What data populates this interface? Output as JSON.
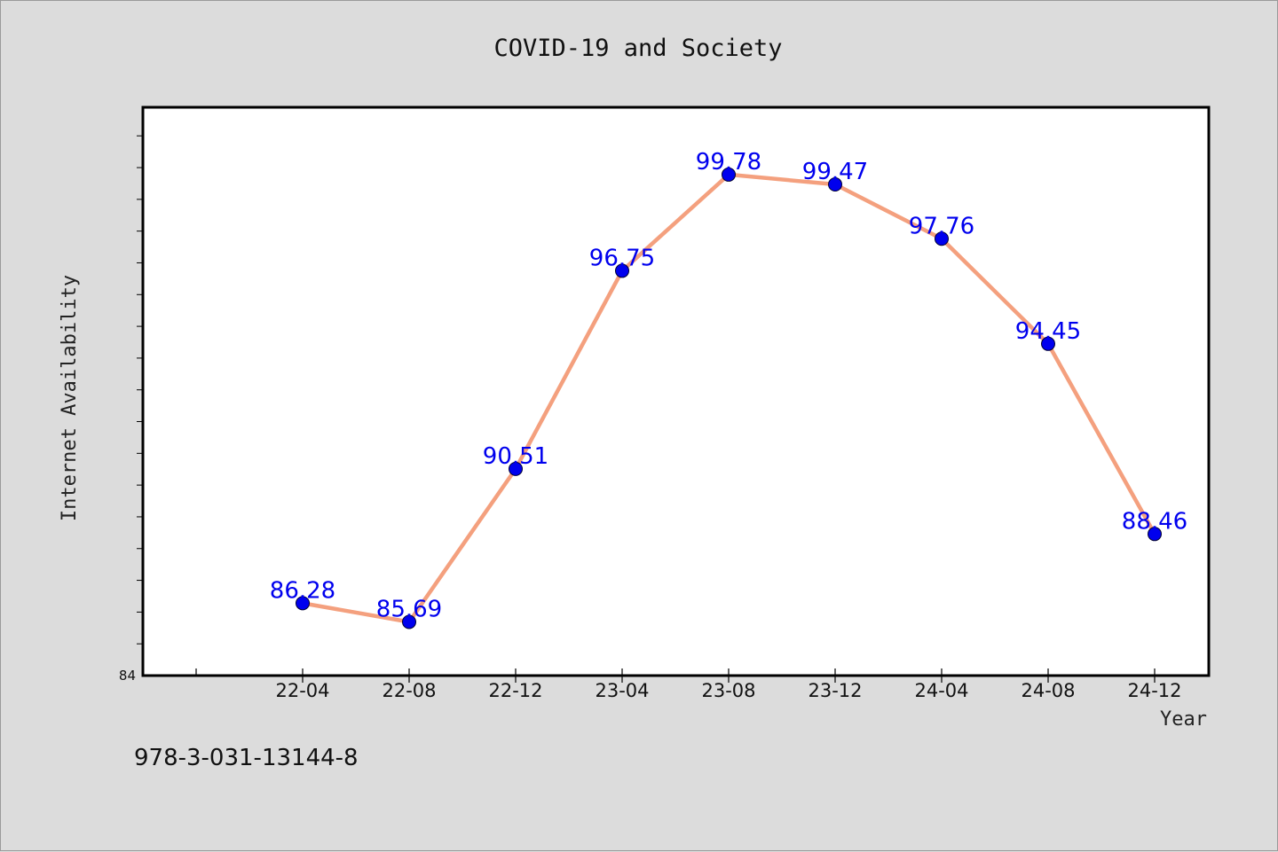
{
  "chart_data": {
    "type": "line",
    "title": "COVID-19 and Society",
    "xlabel": "Year",
    "ylabel": "Internet Availability",
    "categories": [
      "22-04",
      "22-08",
      "22-12",
      "23-04",
      "23-08",
      "23-12",
      "24-04",
      "24-08",
      "24-12"
    ],
    "values": [
      86.28,
      85.69,
      90.51,
      96.75,
      99.78,
      99.47,
      97.76,
      94.45,
      88.46
    ],
    "data_labels": [
      "86.28",
      "85.69",
      "90.51",
      "96.75",
      "99.78",
      "99.47",
      "97.76",
      "94.45",
      "88.46"
    ],
    "ylim": [
      84,
      101.9
    ],
    "y_tick_labels": [
      "84"
    ],
    "grid": false,
    "line_color": "#f4a07e",
    "marker_color": "#0000ee",
    "label_color": "#0000ee"
  },
  "footer": {
    "isbn": "978-3-031-13144-8"
  }
}
